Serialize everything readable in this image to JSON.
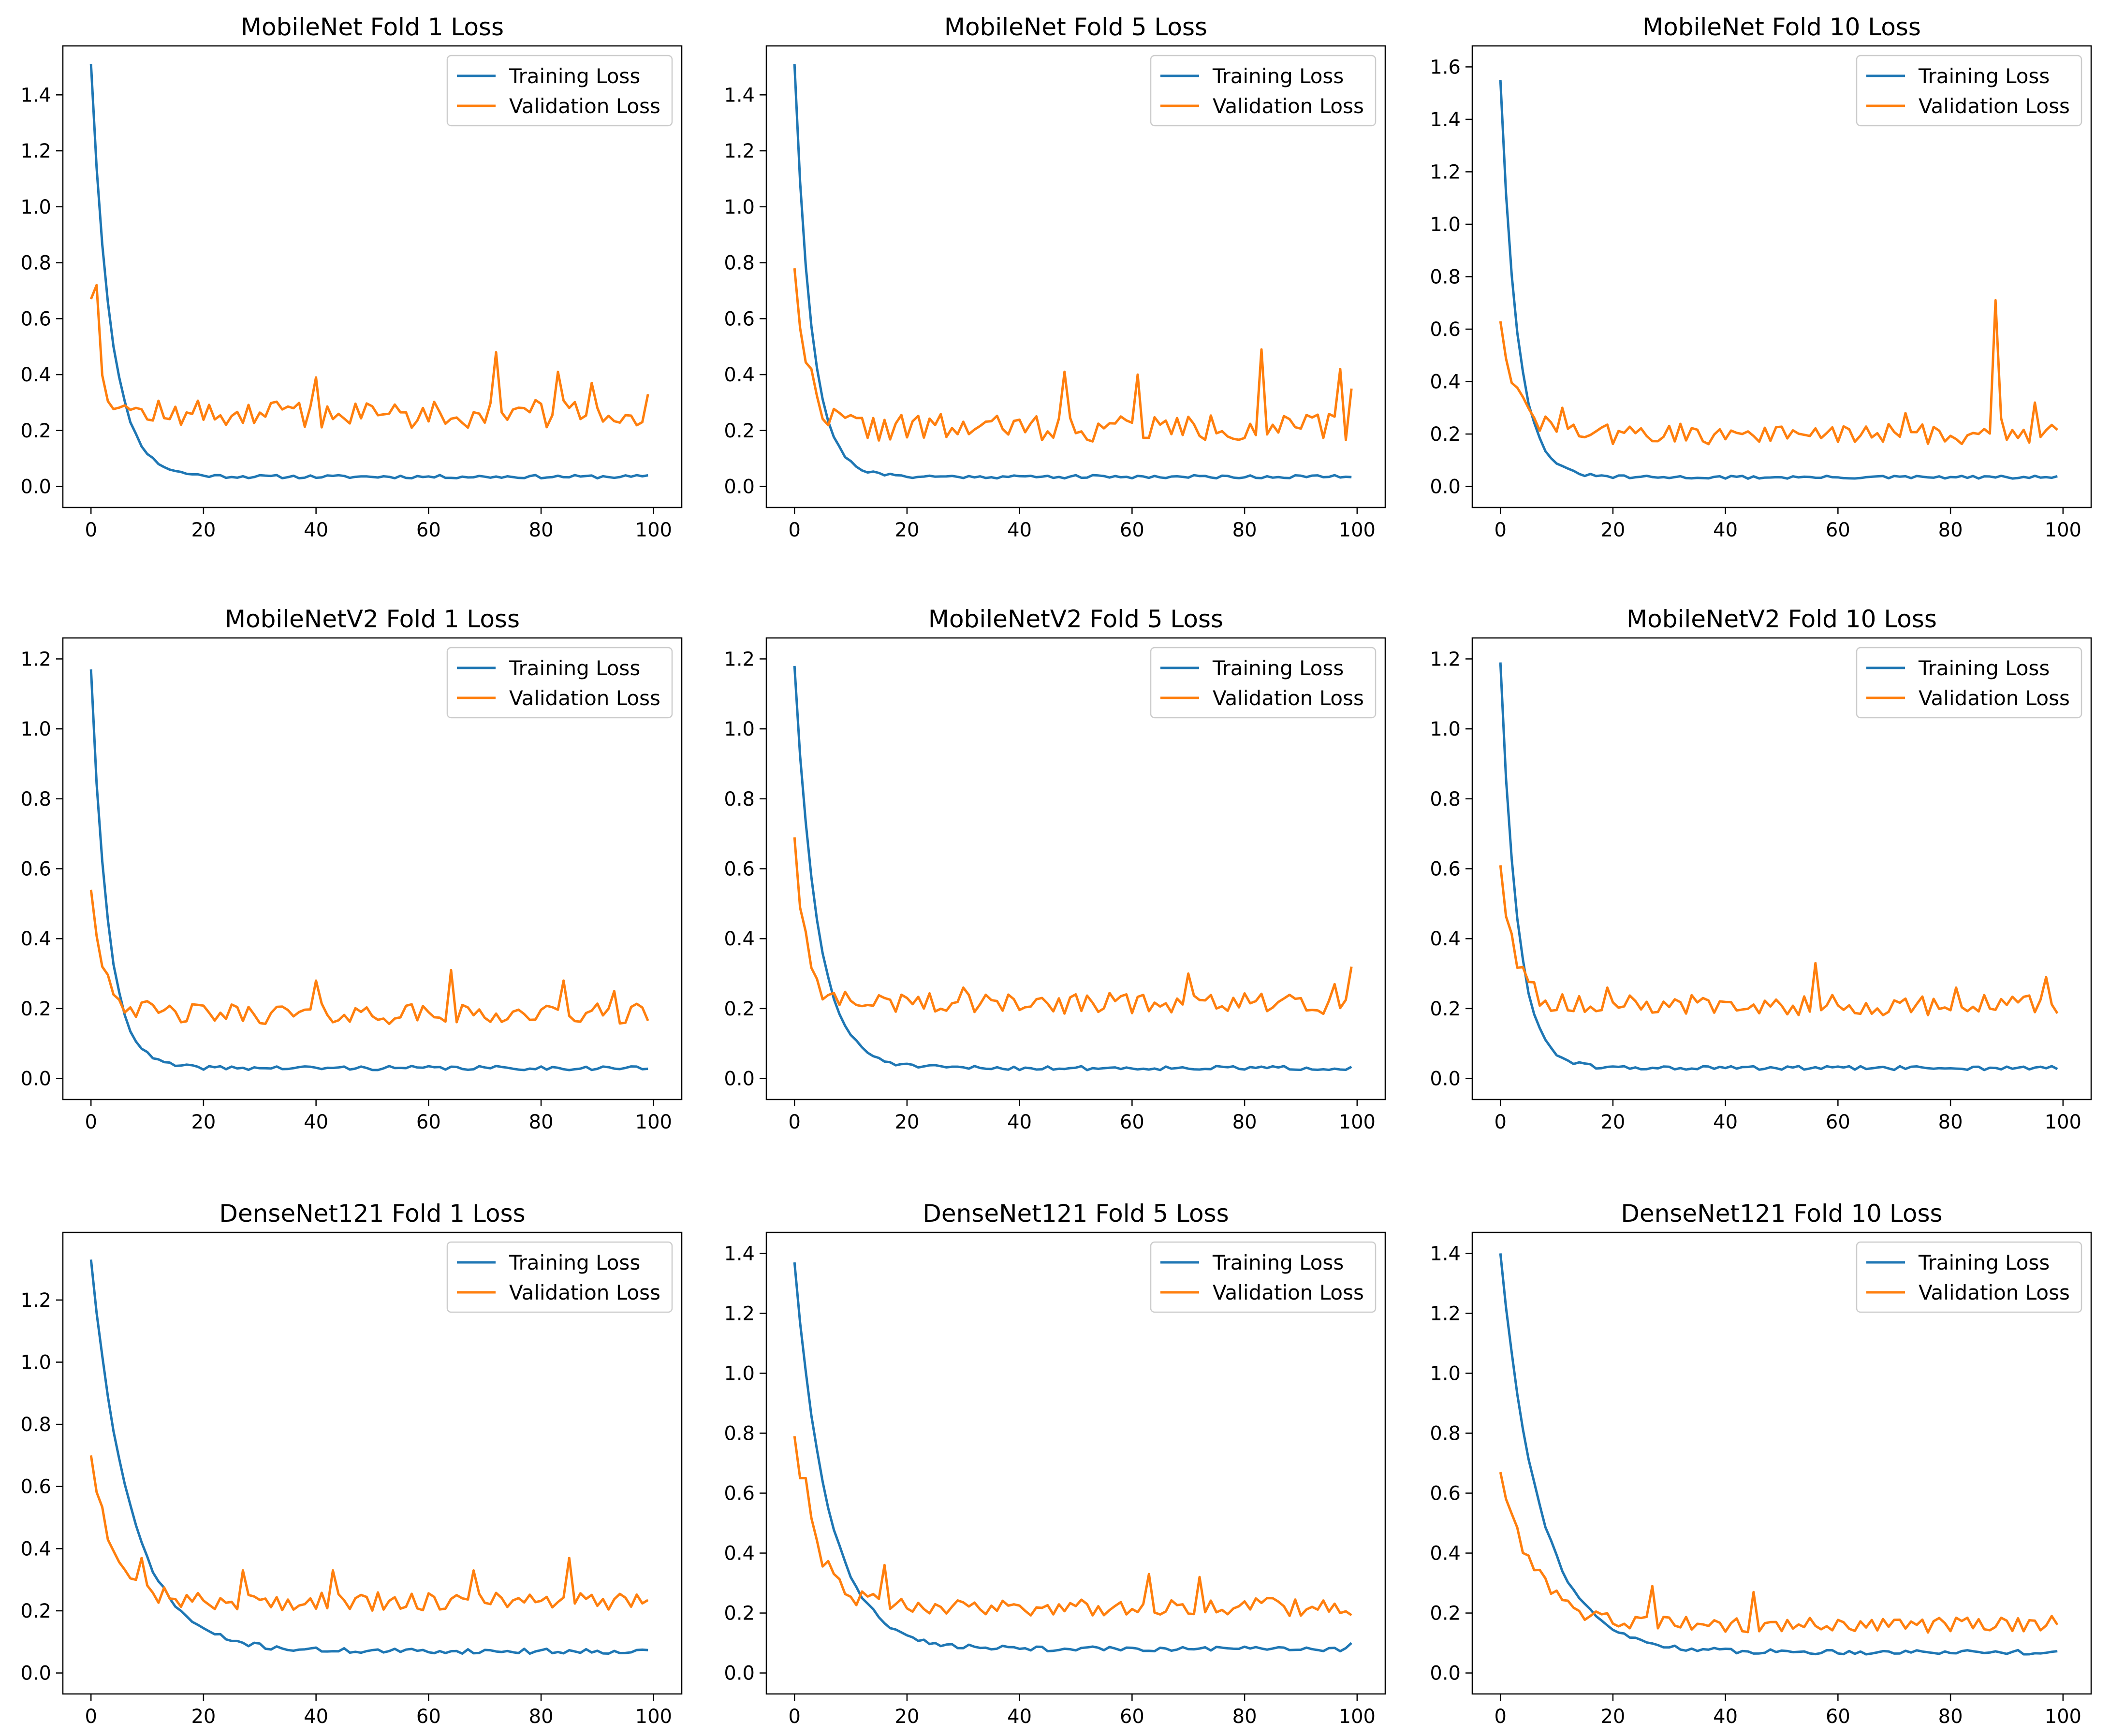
{
  "colors": {
    "training": "#1f77b4",
    "validation": "#ff7f0e",
    "axis": "#000000",
    "legend_border": "#cccccc"
  },
  "chart_data": [
    {
      "type": "line",
      "title": "MobileNet Fold 1 Loss",
      "xlabel": "",
      "ylabel": "",
      "xlim": [
        0,
        100
      ],
      "ylim": [
        0,
        1.5
      ],
      "xticks": [
        0,
        20,
        40,
        60,
        80,
        100
      ],
      "xtick_labels": [
        "0",
        "20",
        "40",
        "60",
        "80",
        "100"
      ],
      "yticks": [
        0,
        0.2,
        0.4,
        0.6,
        0.8,
        1.0,
        1.2,
        1.4
      ],
      "ytick_labels": [
        "0.0",
        "0.2",
        "0.4",
        "0.6",
        "0.8",
        "1.0",
        "1.2",
        "1.4"
      ],
      "grid": false,
      "legend": "top-right",
      "series": [
        {
          "name": "Training Loss",
          "color": "training",
          "start": 1.51,
          "end": 0.035,
          "tau": 3.5,
          "noise": 0.006,
          "seed": 11,
          "spikes": []
        },
        {
          "name": "Validation Loss",
          "color": "validation",
          "start": 0.67,
          "end": 0.26,
          "tau": 2.0,
          "noise": 0.05,
          "seed": 12,
          "spikes": [
            [
              1,
              0.72
            ],
            [
              40,
              0.39
            ],
            [
              72,
              0.48
            ],
            [
              77,
              0.28
            ],
            [
              83,
              0.41
            ],
            [
              89,
              0.37
            ],
            [
              99,
              0.33
            ]
          ]
        }
      ]
    },
    {
      "type": "line",
      "title": "MobileNet Fold 5 Loss",
      "xlabel": "",
      "ylabel": "",
      "xlim": [
        0,
        100
      ],
      "ylim": [
        0,
        1.5
      ],
      "xticks": [
        0,
        20,
        40,
        60,
        80,
        100
      ],
      "xtick_labels": [
        "0",
        "20",
        "40",
        "60",
        "80",
        "100"
      ],
      "yticks": [
        0,
        0.2,
        0.4,
        0.6,
        0.8,
        1.0,
        1.2,
        1.4
      ],
      "ytick_labels": [
        "0.0",
        "0.2",
        "0.4",
        "0.6",
        "0.8",
        "1.0",
        "1.2",
        "1.4"
      ],
      "grid": false,
      "legend": "top-right",
      "series": [
        {
          "name": "Training Loss",
          "color": "training",
          "start": 1.51,
          "end": 0.035,
          "tau": 3.0,
          "noise": 0.006,
          "seed": 21,
          "spikes": []
        },
        {
          "name": "Validation Loss",
          "color": "validation",
          "start": 0.78,
          "end": 0.21,
          "tau": 2.5,
          "noise": 0.05,
          "seed": 22,
          "spikes": [
            [
              48,
              0.41
            ],
            [
              61,
              0.4
            ],
            [
              83,
              0.49
            ],
            [
              97,
              0.42
            ],
            [
              99,
              0.35
            ]
          ]
        }
      ]
    },
    {
      "type": "line",
      "title": "MobileNet Fold 10 Loss",
      "xlabel": "",
      "ylabel": "",
      "xlim": [
        0,
        100
      ],
      "ylim": [
        0,
        1.6
      ],
      "xticks": [
        0,
        20,
        40,
        60,
        80,
        100
      ],
      "xtick_labels": [
        "0",
        "20",
        "40",
        "60",
        "80",
        "100"
      ],
      "yticks": [
        0,
        0.2,
        0.4,
        0.6,
        0.8,
        1.0,
        1.2,
        1.4,
        1.6
      ],
      "ytick_labels": [
        "0.0",
        "0.2",
        "0.4",
        "0.6",
        "0.8",
        "1.0",
        "1.2",
        "1.4",
        "1.6"
      ],
      "grid": false,
      "legend": "top-right",
      "series": [
        {
          "name": "Training Loss",
          "color": "training",
          "start": 1.55,
          "end": 0.035,
          "tau": 3.0,
          "noise": 0.006,
          "seed": 31,
          "spikes": []
        },
        {
          "name": "Validation Loss",
          "color": "validation",
          "start": 0.63,
          "end": 0.2,
          "tau": 3.0,
          "noise": 0.04,
          "seed": 32,
          "spikes": [
            [
              11,
              0.3
            ],
            [
              72,
              0.28
            ],
            [
              88,
              0.71
            ],
            [
              89,
              0.26
            ],
            [
              95,
              0.32
            ]
          ]
        }
      ]
    },
    {
      "type": "line",
      "title": "MobileNetV2  Fold 1 Loss",
      "xlabel": "",
      "ylabel": "",
      "xlim": [
        0,
        100
      ],
      "ylim": [
        0,
        1.2
      ],
      "xticks": [
        0,
        20,
        40,
        60,
        80,
        100
      ],
      "xtick_labels": [
        "0",
        "20",
        "40",
        "60",
        "80",
        "100"
      ],
      "yticks": [
        0,
        0.2,
        0.4,
        0.6,
        0.8,
        1.0,
        1.2
      ],
      "ytick_labels": [
        "0.0",
        "0.2",
        "0.4",
        "0.6",
        "0.8",
        "1.0",
        "1.2"
      ],
      "grid": false,
      "legend": "top-right",
      "series": [
        {
          "name": "Training Loss",
          "color": "training",
          "start": 1.17,
          "end": 0.03,
          "tau": 3.0,
          "noise": 0.006,
          "seed": 41,
          "spikes": []
        },
        {
          "name": "Validation Loss",
          "color": "validation",
          "start": 0.54,
          "end": 0.185,
          "tau": 2.5,
          "noise": 0.03,
          "seed": 42,
          "spikes": [
            [
              40,
              0.28
            ],
            [
              64,
              0.31
            ],
            [
              84,
              0.28
            ],
            [
              93,
              0.25
            ]
          ]
        }
      ]
    },
    {
      "type": "line",
      "title": "MobileNetV2 Fold 5 Loss",
      "xlabel": "",
      "ylabel": "",
      "xlim": [
        0,
        100
      ],
      "ylim": [
        0,
        1.2
      ],
      "xticks": [
        0,
        20,
        40,
        60,
        80,
        100
      ],
      "xtick_labels": [
        "0",
        "20",
        "40",
        "60",
        "80",
        "100"
      ],
      "yticks": [
        0,
        0.2,
        0.4,
        0.6,
        0.8,
        1.0,
        1.2
      ],
      "ytick_labels": [
        "0.0",
        "0.2",
        "0.4",
        "0.6",
        "0.8",
        "1.0",
        "1.2"
      ],
      "grid": false,
      "legend": "top-right",
      "series": [
        {
          "name": "Training Loss",
          "color": "training",
          "start": 1.18,
          "end": 0.03,
          "tau": 4.0,
          "noise": 0.006,
          "seed": 51,
          "spikes": []
        },
        {
          "name": "Validation Loss",
          "color": "validation",
          "start": 0.69,
          "end": 0.215,
          "tau": 2.0,
          "noise": 0.03,
          "seed": 52,
          "spikes": [
            [
              30,
              0.26
            ],
            [
              70,
              0.3
            ],
            [
              96,
              0.27
            ],
            [
              99,
              0.32
            ]
          ]
        }
      ]
    },
    {
      "type": "line",
      "title": "MobileNetV2 Fold 10 Loss",
      "xlabel": "",
      "ylabel": "",
      "xlim": [
        0,
        100
      ],
      "ylim": [
        0,
        1.2
      ],
      "xticks": [
        0,
        20,
        40,
        60,
        80,
        100
      ],
      "xtick_labels": [
        "0",
        "20",
        "40",
        "60",
        "80",
        "100"
      ],
      "yticks": [
        0,
        0.2,
        0.4,
        0.6,
        0.8,
        1.0,
        1.2
      ],
      "ytick_labels": [
        "0.0",
        "0.2",
        "0.4",
        "0.6",
        "0.8",
        "1.0",
        "1.2"
      ],
      "grid": false,
      "legend": "top-right",
      "series": [
        {
          "name": "Training Loss",
          "color": "training",
          "start": 1.19,
          "end": 0.03,
          "tau": 3.0,
          "noise": 0.006,
          "seed": 61,
          "spikes": []
        },
        {
          "name": "Validation Loss",
          "color": "validation",
          "start": 0.61,
          "end": 0.21,
          "tau": 2.5,
          "noise": 0.03,
          "seed": 62,
          "spikes": [
            [
              19,
              0.26
            ],
            [
              56,
              0.33
            ],
            [
              81,
              0.26
            ],
            [
              97,
              0.29
            ]
          ]
        }
      ]
    },
    {
      "type": "line",
      "title": "DenseNet121 Fold 1 Loss",
      "xlabel": "",
      "ylabel": "",
      "xlim": [
        0,
        100
      ],
      "ylim": [
        0,
        1.35
      ],
      "xticks": [
        0,
        20,
        40,
        60,
        80,
        100
      ],
      "xtick_labels": [
        "0",
        "20",
        "40",
        "60",
        "80",
        "100"
      ],
      "yticks": [
        0,
        0.2,
        0.4,
        0.6,
        0.8,
        1.0,
        1.2
      ],
      "ytick_labels": [
        "0.0",
        "0.2",
        "0.4",
        "0.6",
        "0.8",
        "1.0",
        "1.2"
      ],
      "grid": false,
      "legend": "top-right",
      "series": [
        {
          "name": "Training Loss",
          "color": "training",
          "start": 1.33,
          "end": 0.07,
          "tau": 7.0,
          "noise": 0.008,
          "seed": 71,
          "spikes": []
        },
        {
          "name": "Validation Loss",
          "color": "validation",
          "start": 0.7,
          "end": 0.23,
          "tau": 4.0,
          "noise": 0.03,
          "seed": 72,
          "spikes": [
            [
              9,
              0.37
            ],
            [
              27,
              0.33
            ],
            [
              43,
              0.33
            ],
            [
              68,
              0.33
            ],
            [
              85,
              0.37
            ]
          ]
        }
      ]
    },
    {
      "type": "line",
      "title": "DenseNet121 Fold 5 Loss",
      "xlabel": "",
      "ylabel": "",
      "xlim": [
        0,
        100
      ],
      "ylim": [
        0,
        1.4
      ],
      "xticks": [
        0,
        20,
        40,
        60,
        80,
        100
      ],
      "xtick_labels": [
        "0",
        "20",
        "40",
        "60",
        "80",
        "100"
      ],
      "yticks": [
        0,
        0.2,
        0.4,
        0.6,
        0.8,
        1.0,
        1.2,
        1.4
      ],
      "ytick_labels": [
        "0.0",
        "0.2",
        "0.4",
        "0.6",
        "0.8",
        "1.0",
        "1.2",
        "1.4"
      ],
      "grid": false,
      "legend": "top-right",
      "series": [
        {
          "name": "Training Loss",
          "color": "training",
          "start": 1.37,
          "end": 0.08,
          "tau": 6.0,
          "noise": 0.008,
          "seed": 81,
          "spikes": [
            [
              99,
              0.1
            ]
          ]
        },
        {
          "name": "Validation Loss",
          "color": "validation",
          "start": 0.79,
          "end": 0.22,
          "tau": 4.0,
          "noise": 0.03,
          "seed": 82,
          "spikes": [
            [
              2,
              0.65
            ],
            [
              16,
              0.36
            ],
            [
              63,
              0.33
            ],
            [
              72,
              0.32
            ]
          ]
        }
      ]
    },
    {
      "type": "line",
      "title": "DenseNet121 Fold 10 Loss",
      "xlabel": "",
      "ylabel": "",
      "xlim": [
        0,
        100
      ],
      "ylim": [
        0,
        1.4
      ],
      "xticks": [
        0,
        20,
        40,
        60,
        80,
        100
      ],
      "xtick_labels": [
        "0",
        "20",
        "40",
        "60",
        "80",
        "100"
      ],
      "yticks": [
        0,
        0.2,
        0.4,
        0.6,
        0.8,
        1.0,
        1.2,
        1.4
      ],
      "ytick_labels": [
        "0.0",
        "0.2",
        "0.4",
        "0.6",
        "0.8",
        "1.0",
        "1.2",
        "1.4"
      ],
      "grid": false,
      "legend": "top-right",
      "series": [
        {
          "name": "Training Loss",
          "color": "training",
          "start": 1.4,
          "end": 0.07,
          "tau": 7.0,
          "noise": 0.008,
          "seed": 91,
          "spikes": []
        },
        {
          "name": "Validation Loss",
          "color": "validation",
          "start": 0.67,
          "end": 0.16,
          "tau": 6.0,
          "noise": 0.025,
          "seed": 92,
          "spikes": [
            [
              27,
              0.29
            ],
            [
              45,
              0.27
            ],
            [
              98,
              0.19
            ]
          ]
        }
      ]
    }
  ]
}
